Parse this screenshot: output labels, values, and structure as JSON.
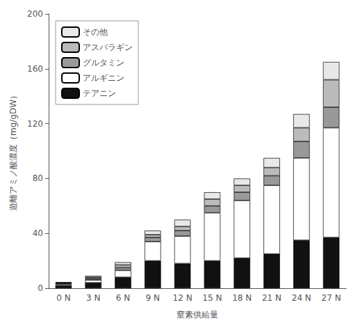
{
  "chart_data": {
    "type": "bar",
    "stacked": true,
    "categories": [
      "0 N",
      "3 N",
      "6 N",
      "9 N",
      "12 N",
      "15 N",
      "18 N",
      "21 N",
      "24 N",
      "27 N"
    ],
    "series": [
      {
        "name": "テアニン",
        "color": "#111111",
        "values": [
          2,
          4,
          8,
          20,
          18,
          20,
          22,
          25,
          35,
          37
        ]
      },
      {
        "name": "アルギニン",
        "color": "#ffffff",
        "values": [
          1,
          2,
          5,
          14,
          20,
          35,
          42,
          50,
          60,
          80
        ]
      },
      {
        "name": "グルタミン",
        "color": "#999999",
        "values": [
          0.5,
          1,
          2,
          3,
          4,
          5,
          6,
          7,
          12,
          15
        ]
      },
      {
        "name": "アスパラギン",
        "color": "#bbbbbb",
        "values": [
          0.5,
          1,
          2,
          2,
          3,
          5,
          5,
          6,
          10,
          20
        ]
      },
      {
        "name": "その他",
        "color": "#e8e8e8",
        "values": [
          0.5,
          1,
          2,
          3,
          5,
          5,
          5,
          7,
          10,
          13
        ]
      }
    ],
    "xlabel": "窒素供給量",
    "ylabel": "遊離アミノ酸濃度（mg/gDW）",
    "ylim": [
      0,
      200
    ],
    "yticks": [
      0,
      40,
      80,
      120,
      160,
      200
    ],
    "grid": false,
    "legend": "upper left"
  }
}
